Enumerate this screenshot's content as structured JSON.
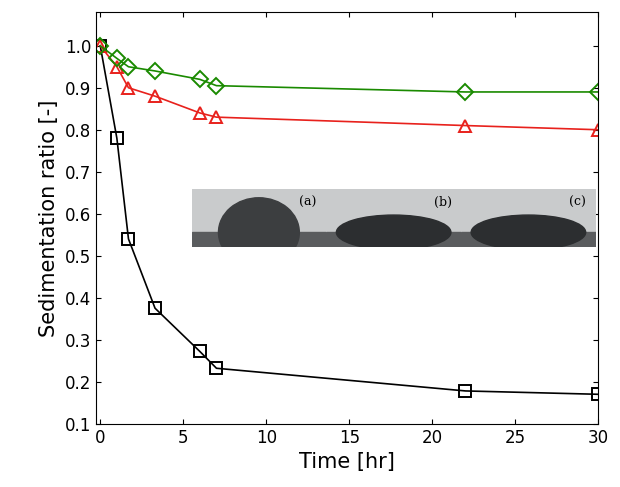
{
  "chart_data": {
    "type": "line",
    "x_label": "Time [hr]",
    "y_label": "Sedimentation ratio [-]",
    "x": [
      0,
      1,
      1.7,
      3.3,
      6,
      7,
      22,
      30
    ],
    "series": [
      {
        "color": "#000000",
        "marker": "square",
        "values": [
          1.0,
          0.78,
          0.54,
          0.375,
          0.272,
          0.232,
          0.178,
          0.17
        ]
      },
      {
        "color": "#e8211c",
        "marker": "triangle",
        "values": [
          1.0,
          0.95,
          0.9,
          0.88,
          0.84,
          0.83,
          0.81,
          0.8
        ]
      },
      {
        "color": "#1a8a00",
        "marker": "diamond",
        "values": [
          1.0,
          0.97,
          0.95,
          0.94,
          0.92,
          0.905,
          0.89,
          0.89
        ]
      }
    ],
    "xlim": [
      -0.25,
      30
    ],
    "ylim": [
      0.1,
      1.08
    ],
    "xticks": [
      0,
      5,
      10,
      15,
      20,
      25,
      30
    ],
    "yticks": [
      0.1,
      0.2,
      0.3,
      0.4,
      0.5,
      0.6,
      0.7,
      0.8,
      0.9,
      1.0
    ],
    "annotations": [
      "(a)",
      "(b)",
      "(c)"
    ],
    "grid": false
  }
}
